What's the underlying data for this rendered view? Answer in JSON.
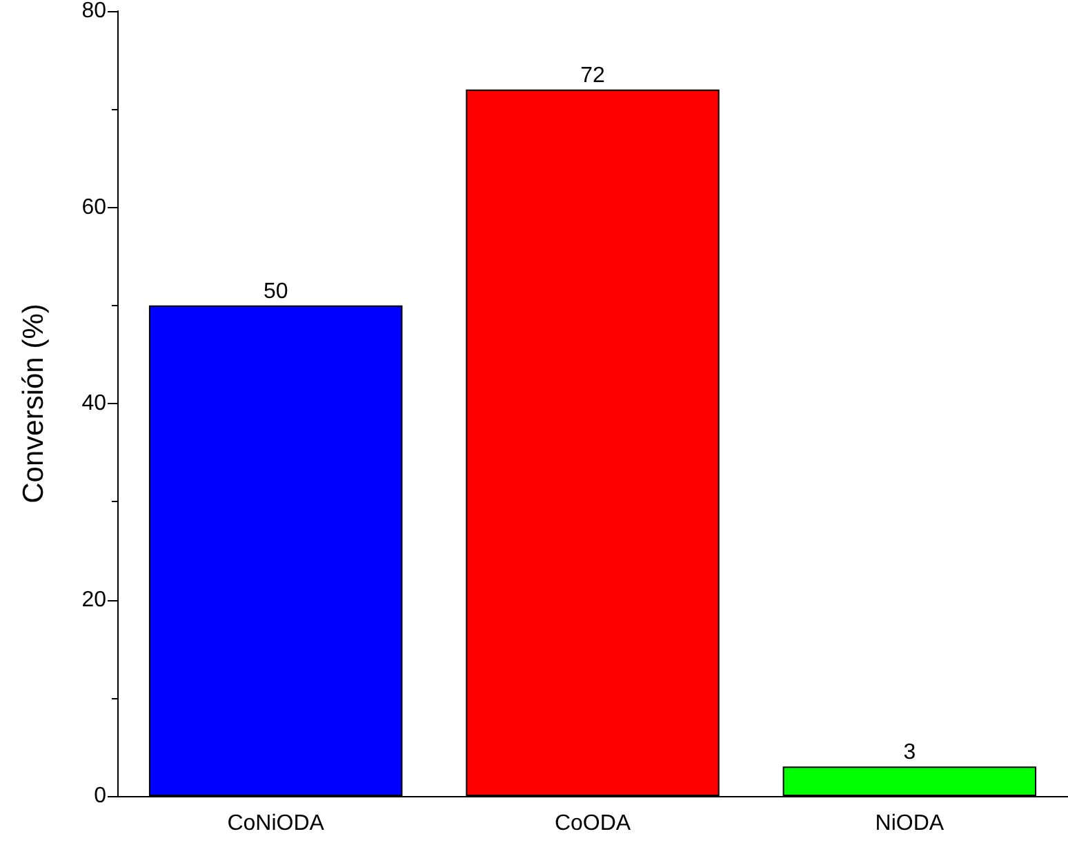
{
  "chart_data": {
    "type": "bar",
    "ylabel": "Conversión (%)",
    "categories": [
      "CoNiODA",
      "CoODA",
      "NiODA"
    ],
    "values": [
      50,
      72,
      3
    ],
    "colors": [
      "#0000ff",
      "#ff0000",
      "#00ff00"
    ],
    "ylim": [
      0,
      80
    ],
    "yticks": [
      0,
      20,
      40,
      60,
      80
    ],
    "grid": false,
    "data_labels": true
  }
}
